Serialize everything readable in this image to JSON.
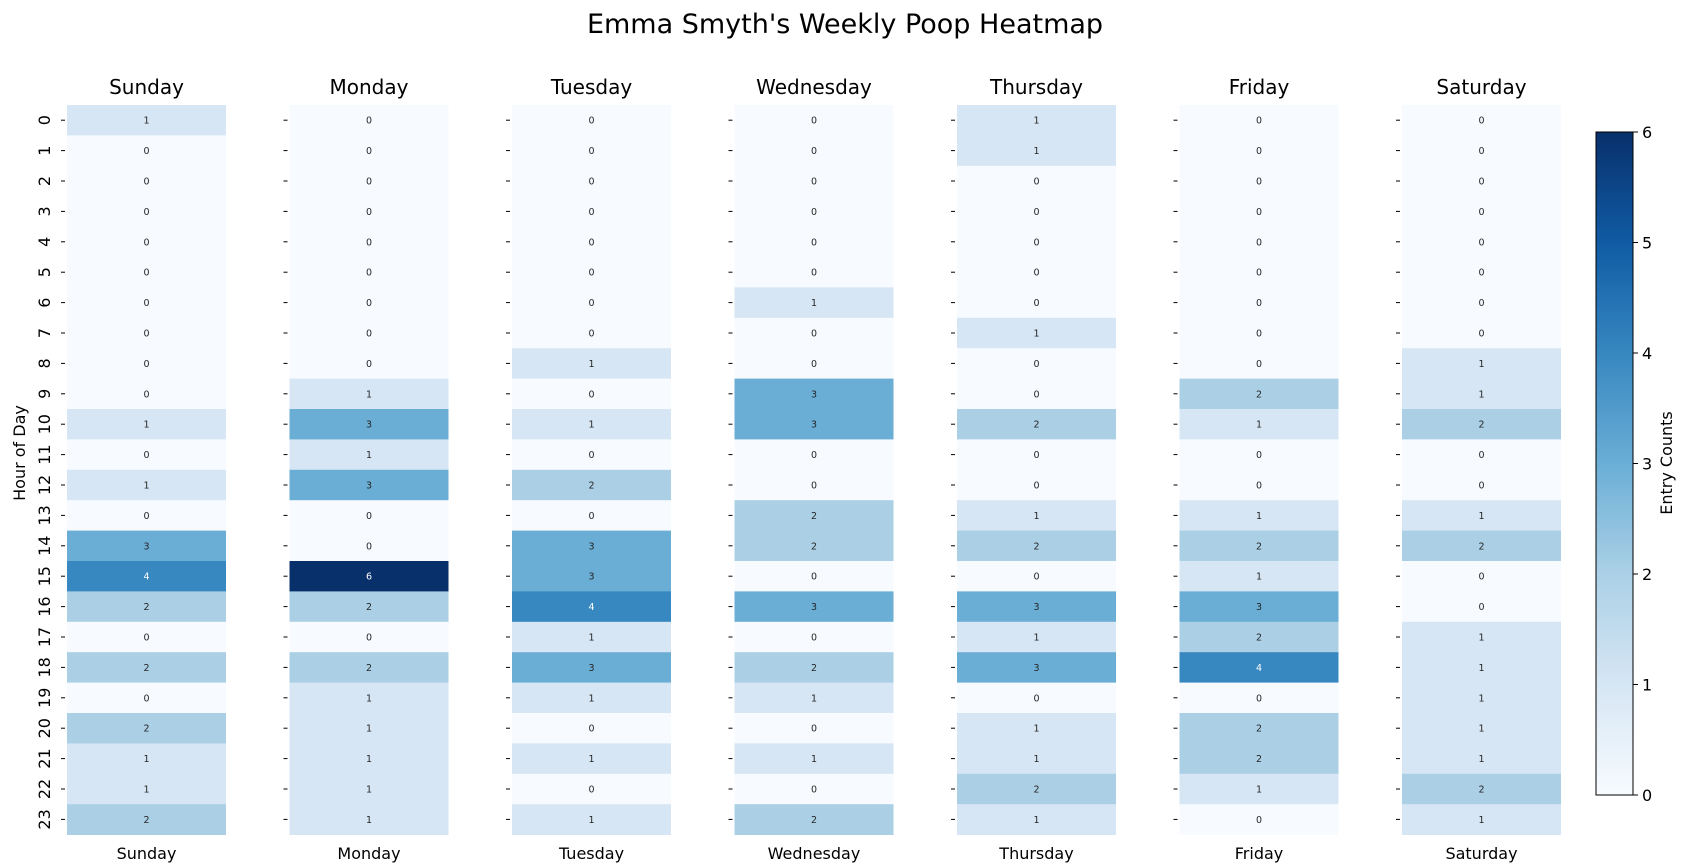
{
  "chart_data": {
    "type": "heatmap",
    "title": "Emma Smyth's Weekly Poop Heatmap",
    "ylabel": "Hour of Day",
    "colorbar": {
      "label": "Entry Counts",
      "range": [
        0,
        6
      ],
      "ticks": [
        "0",
        "1",
        "2",
        "3",
        "4",
        "5",
        "6"
      ],
      "colormap": "Blues",
      "position": "right"
    },
    "hours": [
      "0",
      "1",
      "2",
      "3",
      "4",
      "5",
      "6",
      "7",
      "8",
      "9",
      "10",
      "11",
      "12",
      "13",
      "14",
      "15",
      "16",
      "17",
      "18",
      "19",
      "20",
      "21",
      "22",
      "23"
    ],
    "panels": [
      {
        "day": "Sunday",
        "values": [
          1,
          0,
          0,
          0,
          0,
          0,
          0,
          0,
          0,
          0,
          1,
          0,
          1,
          0,
          3,
          4,
          2,
          0,
          2,
          0,
          2,
          1,
          1,
          2
        ]
      },
      {
        "day": "Monday",
        "values": [
          0,
          0,
          0,
          0,
          0,
          0,
          0,
          0,
          0,
          1,
          3,
          1,
          3,
          0,
          0,
          6,
          2,
          0,
          2,
          1,
          1,
          1,
          1,
          1
        ]
      },
      {
        "day": "Tuesday",
        "values": [
          0,
          0,
          0,
          0,
          0,
          0,
          0,
          0,
          1,
          0,
          1,
          0,
          2,
          0,
          3,
          3,
          4,
          1,
          3,
          1,
          0,
          1,
          0,
          1
        ]
      },
      {
        "day": "Wednesday",
        "values": [
          0,
          0,
          0,
          0,
          0,
          0,
          1,
          0,
          0,
          3,
          3,
          0,
          0,
          2,
          2,
          0,
          3,
          0,
          2,
          1,
          0,
          1,
          0,
          2
        ]
      },
      {
        "day": "Thursday",
        "values": [
          1,
          1,
          0,
          0,
          0,
          0,
          0,
          1,
          0,
          0,
          2,
          0,
          0,
          1,
          2,
          0,
          3,
          1,
          3,
          0,
          1,
          1,
          2,
          1
        ]
      },
      {
        "day": "Friday",
        "values": [
          0,
          0,
          0,
          0,
          0,
          0,
          0,
          0,
          0,
          2,
          1,
          0,
          0,
          1,
          2,
          1,
          3,
          2,
          4,
          0,
          2,
          2,
          1,
          0
        ]
      },
      {
        "day": "Saturday",
        "values": [
          0,
          0,
          0,
          0,
          0,
          0,
          0,
          0,
          1,
          1,
          2,
          0,
          0,
          1,
          2,
          0,
          0,
          1,
          1,
          1,
          1,
          1,
          2,
          1
        ]
      }
    ]
  }
}
